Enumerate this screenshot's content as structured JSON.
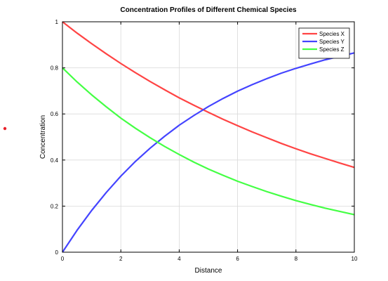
{
  "colors": {
    "marker": "#e8202a",
    "grid": "#d9d9d9"
  },
  "chart_data": {
    "type": "line",
    "title": "Concentration Profiles of Different Chemical Species",
    "xlabel": "Distance",
    "ylabel": "Concentration",
    "xlim": [
      0,
      10
    ],
    "ylim": [
      0,
      1
    ],
    "xticks": [
      "0",
      "2",
      "4",
      "6",
      "8",
      "10"
    ],
    "yticks": [
      "0",
      "0.2",
      "0.4",
      "0.6",
      "0.8",
      "1"
    ],
    "grid": true,
    "legend_position": "top-right",
    "x": [
      0,
      0.5,
      1,
      1.5,
      2,
      2.5,
      3,
      3.5,
      4,
      4.5,
      5,
      5.5,
      6,
      6.5,
      7,
      7.5,
      8,
      8.5,
      9,
      9.5,
      10
    ],
    "series": [
      {
        "name": "Species X",
        "color": "#ff4444",
        "values": [
          1.0,
          0.951,
          0.905,
          0.861,
          0.819,
          0.779,
          0.741,
          0.705,
          0.67,
          0.638,
          0.607,
          0.577,
          0.549,
          0.522,
          0.497,
          0.472,
          0.449,
          0.427,
          0.407,
          0.387,
          0.368
        ]
      },
      {
        "name": "Species Y",
        "color": "#4444ff",
        "values": [
          0.0,
          0.095,
          0.181,
          0.259,
          0.33,
          0.394,
          0.451,
          0.503,
          0.551,
          0.593,
          0.632,
          0.667,
          0.699,
          0.727,
          0.753,
          0.777,
          0.798,
          0.817,
          0.835,
          0.85,
          0.865
        ]
      },
      {
        "name": "Species Z",
        "color": "#44ff44",
        "values": [
          0.8,
          0.739,
          0.683,
          0.631,
          0.582,
          0.538,
          0.497,
          0.459,
          0.424,
          0.391,
          0.361,
          0.334,
          0.308,
          0.285,
          0.263,
          0.243,
          0.224,
          0.207,
          0.191,
          0.177,
          0.163
        ]
      }
    ]
  }
}
